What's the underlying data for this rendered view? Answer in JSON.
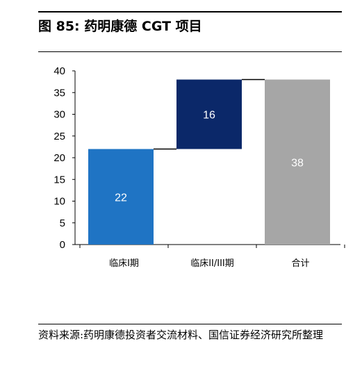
{
  "figure": {
    "title": "图 85:  药明康德 CGT 项目",
    "source": "资料来源:药明康德投资者交流材料、国信证券经济研究所整理"
  },
  "chart_data": {
    "type": "bar",
    "subtype": "waterfall",
    "title": "",
    "xlabel": "",
    "ylabel": "",
    "ylim": [
      0,
      40
    ],
    "yticks": [
      0,
      5,
      10,
      15,
      20,
      25,
      30,
      35,
      40
    ],
    "grid": false,
    "legend": "none",
    "categories": [
      "临床I期",
      "临床II/III期",
      "合计"
    ],
    "bars": [
      {
        "category": "临床I期",
        "base": 0,
        "value": 22,
        "label": "22",
        "color": "#1f74c4"
      },
      {
        "category": "临床II/III期",
        "base": 22,
        "value": 16,
        "label": "16",
        "color": "#0b2869"
      },
      {
        "category": "合计",
        "base": 0,
        "value": 38,
        "label": "38",
        "color": "#a6a6a6"
      }
    ],
    "connectors": [
      {
        "from": "临床I期",
        "to": "临床II/III期",
        "level": 22
      },
      {
        "from": "临床II/III期",
        "to": "合计",
        "level": 38
      }
    ]
  }
}
